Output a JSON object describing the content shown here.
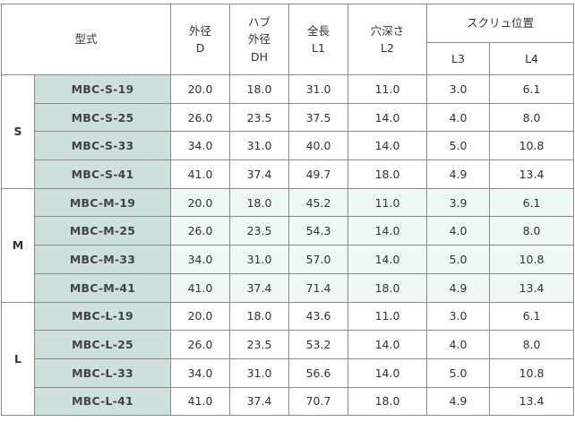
{
  "header": {
    "model": "型式",
    "d": [
      "外径",
      "D"
    ],
    "dh": [
      "ハブ",
      "外径",
      "DH"
    ],
    "l1": [
      "全長",
      "L1"
    ],
    "l2": [
      "穴深さ",
      "L2"
    ],
    "screw": "スクリュ位置",
    "l3": "L3",
    "l4": "L4"
  },
  "groups": [
    {
      "label": "S",
      "rows": [
        {
          "model": "MBC-S-19",
          "d": "20.0",
          "dh": "18.0",
          "l1": "31.0",
          "l2": "11.0",
          "l3": "3.0",
          "l4": "6.1"
        },
        {
          "model": "MBC-S-25",
          "d": "26.0",
          "dh": "23.5",
          "l1": "37.5",
          "l2": "14.0",
          "l3": "4.0",
          "l4": "8.0"
        },
        {
          "model": "MBC-S-33",
          "d": "34.0",
          "dh": "31.0",
          "l1": "40.0",
          "l2": "14.0",
          "l3": "5.0",
          "l4": "10.8"
        },
        {
          "model": "MBC-S-41",
          "d": "41.0",
          "dh": "37.4",
          "l1": "49.7",
          "l2": "18.0",
          "l3": "4.9",
          "l4": "13.4"
        }
      ]
    },
    {
      "label": "M",
      "rows": [
        {
          "model": "MBC-M-19",
          "d": "20.0",
          "dh": "18.0",
          "l1": "45.2",
          "l2": "11.0",
          "l3": "3.9",
          "l4": "6.1"
        },
        {
          "model": "MBC-M-25",
          "d": "26.0",
          "dh": "23.5",
          "l1": "54.3",
          "l2": "14.0",
          "l3": "4.0",
          "l4": "8.0"
        },
        {
          "model": "MBC-M-33",
          "d": "34.0",
          "dh": "31.0",
          "l1": "57.0",
          "l2": "14.0",
          "l3": "5.0",
          "l4": "10.8"
        },
        {
          "model": "MBC-M-41",
          "d": "41.0",
          "dh": "37.4",
          "l1": "71.4",
          "l2": "18.0",
          "l3": "4.9",
          "l4": "13.4"
        }
      ]
    },
    {
      "label": "L",
      "rows": [
        {
          "model": "MBC-L-19",
          "d": "20.0",
          "dh": "18.0",
          "l1": "43.6",
          "l2": "11.0",
          "l3": "3.0",
          "l4": "6.1"
        },
        {
          "model": "MBC-L-25",
          "d": "26.0",
          "dh": "23.5",
          "l1": "53.2",
          "l2": "14.0",
          "l3": "4.0",
          "l4": "8.0"
        },
        {
          "model": "MBC-L-33",
          "d": "34.0",
          "dh": "31.0",
          "l1": "56.6",
          "l2": "14.0",
          "l3": "5.0",
          "l4": "10.8"
        },
        {
          "model": "MBC-L-41",
          "d": "41.0",
          "dh": "37.4",
          "l1": "70.7",
          "l2": "18.0",
          "l3": "4.9",
          "l4": "13.4"
        }
      ]
    }
  ]
}
